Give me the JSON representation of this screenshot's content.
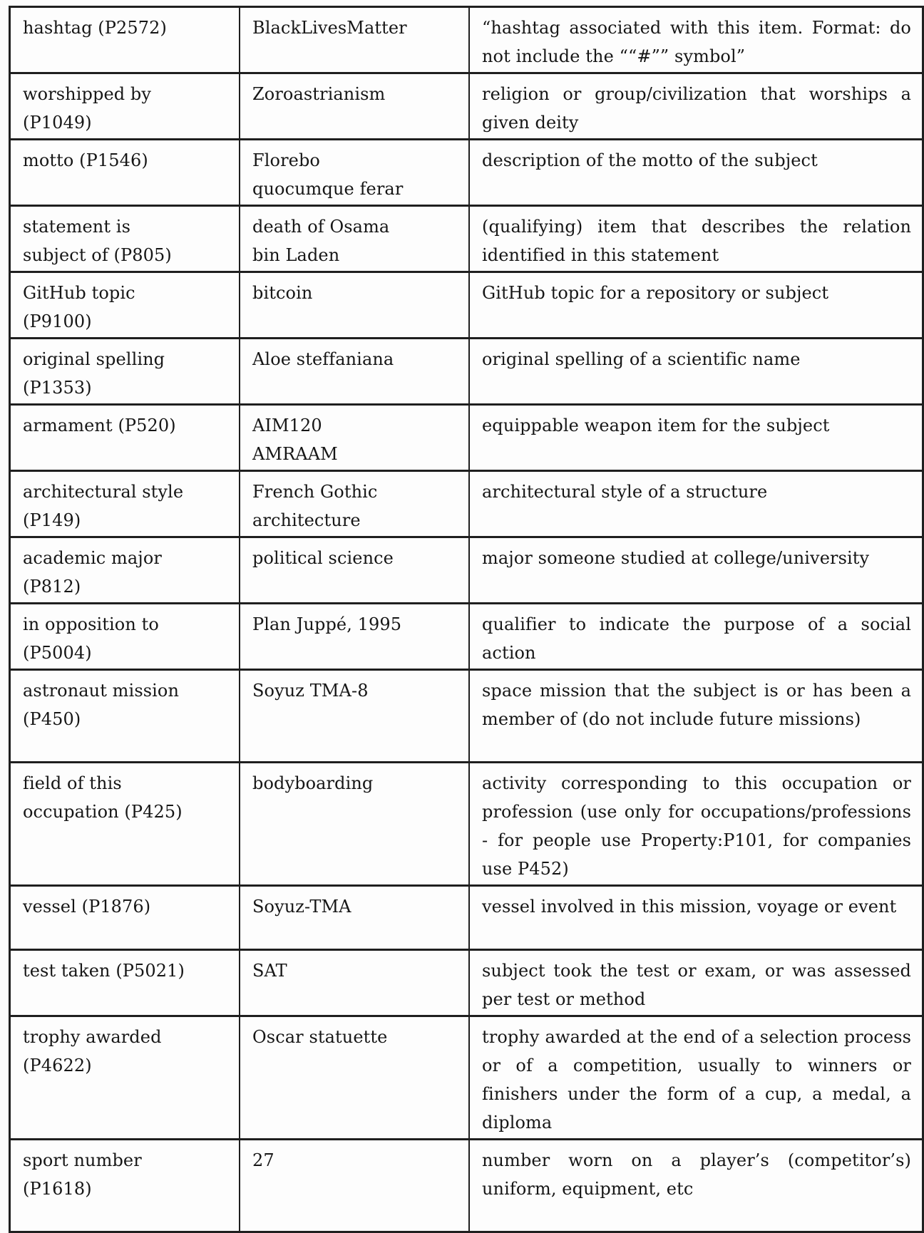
{
  "table": {
    "semantic_columns": [
      "property",
      "example_value",
      "description"
    ],
    "rows": [
      {
        "property": "hashtag (P2572)",
        "value": "BlackLivesMatter",
        "description": "“hashtag associated with this item. Format: do not include the ““#”” symbol”"
      },
      {
        "property": "worshipped by\n(P1049)",
        "value": "Zoroastrianism",
        "description": "religion or group/civilization that worships a given deity"
      },
      {
        "property": "motto (P1546)",
        "value": "Florebo\nquocumque ferar",
        "description": "description of the motto of the subject"
      },
      {
        "property": "statement is\nsubject of (P805)",
        "value": "death of Osama\nbin Laden",
        "description": "(qualifying) item that describes the relation identified in this statement"
      },
      {
        "property": "GitHub topic\n(P9100)",
        "value": "bitcoin",
        "description": "GitHub topic for a repository or subject"
      },
      {
        "property": "original spelling\n(P1353)",
        "value": "Aloe steffaniana",
        "description": "original spelling of a scientific name"
      },
      {
        "property": "armament (P520)",
        "value": "AIM120\nAMRAAM",
        "description": "equippable weapon item for the subject"
      },
      {
        "property": "architectural style\n(P149)",
        "value": "French Gothic\narchitecture",
        "description": "architectural style of a structure"
      },
      {
        "property": "academic major\n(P812)",
        "value": "political science",
        "description": "major someone studied at college/university"
      },
      {
        "property": "in opposition to\n(P5004)",
        "value": "Plan Juppé, 1995",
        "description": "qualifier to indicate the purpose of a social action"
      },
      {
        "property": "astronaut mission\n(P450)",
        "value": "Soyuz TMA-8",
        "description": "space mission that the subject is or has been a member of (do not include future missions)"
      },
      {
        "property": "field of this\noccupation (P425)",
        "value": "bodyboarding",
        "description": "activity corresponding to this occupation or profession (use only for occupations/professions - for people use Property:P101, for companies use P452)"
      },
      {
        "property": "vessel (P1876)",
        "value": "Soyuz-TMA",
        "description": "vessel involved in this mission, voyage or event"
      },
      {
        "property": "test taken (P5021)",
        "value": "SAT",
        "description": "subject took the test or exam, or was assessed per test or method"
      },
      {
        "property": "trophy awarded\n(P4622)",
        "value": "Oscar statuette",
        "description": "trophy awarded at the end of a selection process or of a competition, usually to winners or finishers under the form of a cup, a medal, a diploma"
      },
      {
        "property": "sport number\n(P1618)",
        "value": "27",
        "description": "number worn on a player’s (competitor’s) uniform, equipment, etc"
      }
    ]
  }
}
